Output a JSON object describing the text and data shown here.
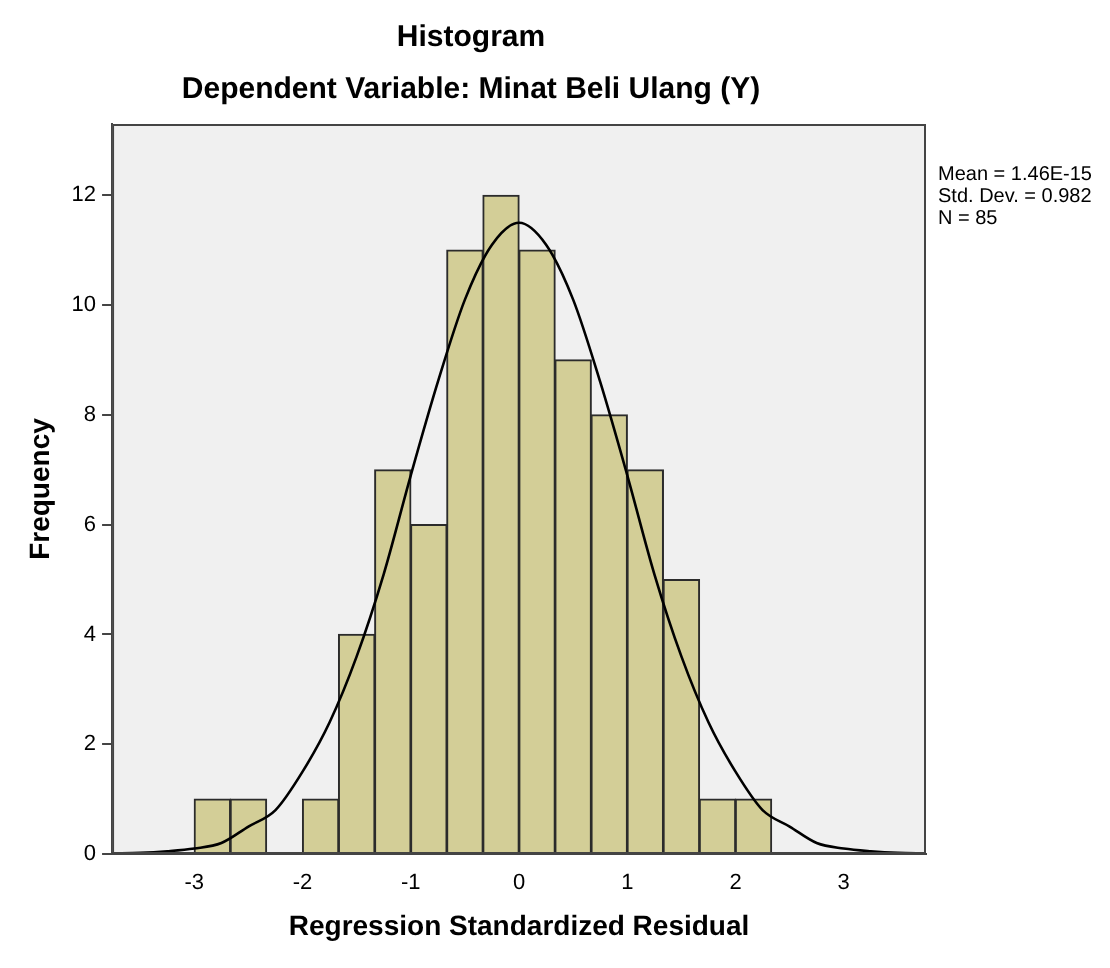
{
  "chart_data": {
    "type": "histogram",
    "title": "Histogram",
    "subtitle": "Dependent Variable: Minat Beli Ulang (Y)",
    "xlabel": "Regression Standardized Residual",
    "ylabel": "Frequency",
    "annotations": [
      "Mean = 1.46E-15",
      "Std. Dev. = 0.982",
      "N = 85"
    ],
    "xlim": [
      -3.76,
      3.76
    ],
    "xticks": [
      -3,
      -2,
      -1,
      0,
      1,
      2,
      3
    ],
    "ylim": [
      0,
      13.3
    ],
    "yticks": [
      0,
      2,
      4,
      6,
      8,
      10,
      12
    ],
    "series": [
      {
        "color": "#d3ce97",
        "bins": [
          -3,
          -2.667,
          -2.333,
          -2,
          -1.667,
          -1.333,
          -1,
          -0.667,
          -0.333,
          0,
          0.333,
          0.667,
          1,
          1.333,
          1.667,
          2,
          2.333
        ],
        "values": [
          1,
          1,
          0,
          1,
          4,
          7,
          6,
          11,
          12,
          11,
          9,
          8,
          7,
          5,
          1,
          1
        ]
      },
      {
        "type": "line",
        "color": "#000000",
        "marker": "none",
        "x": [
          -3.76,
          -3.5,
          -3.25,
          -3,
          -2.75,
          -2.5,
          -2.25,
          -2,
          -1.75,
          -1.5,
          -1.25,
          -1,
          -0.75,
          -0.5,
          -0.25,
          0,
          0.25,
          0.5,
          0.75,
          1,
          1.25,
          1.5,
          1.75,
          2,
          2.25,
          2.5,
          2.75,
          3,
          3.25,
          3.5,
          3.76
        ],
        "values": [
          0.01,
          0.02,
          0.05,
          0.1,
          0.2,
          0.5,
          0.8,
          1.5,
          2.4,
          3.6,
          5.1,
          6.9,
          8.6,
          10.1,
          11.1,
          11.5,
          11.1,
          10.1,
          8.6,
          6.9,
          5.1,
          3.6,
          2.4,
          1.5,
          0.8,
          0.5,
          0.2,
          0.1,
          0.05,
          0.02,
          0.01
        ]
      }
    ]
  }
}
